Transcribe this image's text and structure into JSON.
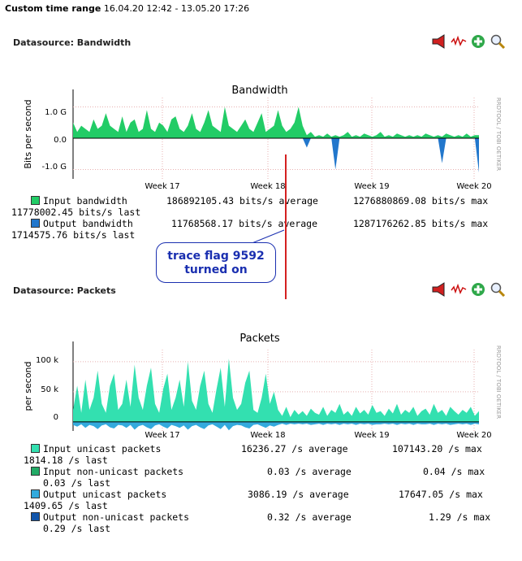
{
  "header": {
    "label": "Custom time range",
    "range": "16.04.20 12:42 - 13.05.20 17:26"
  },
  "panels": [
    {
      "datasource_label": "Datasource: Bandwidth",
      "title": "Bandwidth",
      "ylabel": "Bits per second",
      "yticks": [
        "1.0 G",
        "0.0",
        "-1.0 G"
      ],
      "xticks": [
        "Week 17",
        "Week 18",
        "Week 19",
        "Week 20"
      ],
      "side_label": "RRDTOOL / TOBI OETIKER",
      "legend": [
        {
          "name": "Input bandwidth",
          "color": "#22cc66",
          "avg": "186892105.43 bits/s average",
          "max": "1276880869.08 bits/s max",
          "last": "11778002.45 bits/s last"
        },
        {
          "name": "Output bandwidth",
          "color": "#2277cc",
          "avg": "11768568.17 bits/s average",
          "max": "1287176262.85 bits/s max",
          "last": "1714575.76 bits/s last"
        }
      ]
    },
    {
      "datasource_label": "Datasource: Packets",
      "title": "Packets",
      "ylabel": "per second",
      "yticks": [
        "100 k",
        "50 k",
        "0"
      ],
      "xticks": [
        "Week 17",
        "Week 18",
        "Week 19",
        "Week 20"
      ],
      "side_label": "RRDTOOL / TOBI OETIKER",
      "legend": [
        {
          "name": "Input unicast packets",
          "color": "#33e0b0",
          "avg": "16236.27 /s average",
          "max": "107143.20 /s max",
          "last": "1814.18 /s last"
        },
        {
          "name": "Input non-unicast packets",
          "color": "#22aa66",
          "avg": "0.03 /s average",
          "max": "0.04 /s max",
          "last": "0.03 /s last"
        },
        {
          "name": "Output unicast packets",
          "color": "#33aadd",
          "avg": "3086.19 /s average",
          "max": "17647.05 /s max",
          "last": "1409.65 /s last"
        },
        {
          "name": "Output non-unicast packets",
          "color": "#1155aa",
          "avg": "0.32 /s average",
          "max": "1.29 /s max",
          "last": "0.29 /s last"
        }
      ]
    }
  ],
  "annotation": {
    "line1": "trace flag 9592",
    "line2": "turned on",
    "color": "#1a2fb0"
  },
  "icons": [
    "megaphone-icon",
    "sparkline-icon",
    "add-icon",
    "zoom-icon"
  ],
  "chart_data": [
    {
      "type": "area",
      "title": "Bandwidth",
      "ylabel": "Bits per second",
      "xticks": [
        "Week 17",
        "Week 18",
        "Week 19",
        "Week 20"
      ],
      "yticks": [
        "1.0 G",
        "0.0",
        "-1.0 G"
      ],
      "ylim": [
        -1.3,
        1.3
      ],
      "series": [
        {
          "name": "Input bandwidth",
          "color": "#22cc66",
          "values": [
            0.5,
            0.2,
            0.4,
            0.3,
            0.2,
            0.6,
            0.3,
            0.4,
            0.8,
            0.4,
            0.3,
            0.2,
            0.7,
            0.2,
            0.5,
            0.6,
            0.2,
            0.3,
            0.9,
            0.3,
            0.2,
            0.5,
            0.4,
            0.2,
            0.6,
            0.7,
            0.3,
            0.2,
            0.4,
            0.8,
            0.3,
            0.2,
            0.5,
            0.9,
            0.4,
            0.3,
            0.2,
            1.0,
            0.4,
            0.3,
            0.2,
            0.4,
            0.6,
            0.3,
            0.2,
            0.5,
            0.8,
            0.2,
            0.3,
            0.4,
            0.9,
            0.4,
            0.2,
            0.3,
            0.5,
            1.0,
            0.4,
            0.1,
            0.2,
            0.05,
            0.1,
            0.05,
            0.15,
            0.05,
            0.1,
            0.05,
            0.1,
            0.2,
            0.05,
            0.1,
            0.05,
            0.15,
            0.1,
            0.05,
            0.1,
            0.2,
            0.05,
            0.1,
            0.05,
            0.15,
            0.1,
            0.05,
            0.1,
            0.05,
            0.1,
            0.05,
            0.15,
            0.1,
            0.05,
            0.1,
            0.05,
            0.15,
            0.1,
            0.05,
            0.1,
            0.05,
            0.15,
            0.05,
            0.1,
            0.1
          ]
        },
        {
          "name": "Output bandwidth",
          "color": "#2277cc",
          "values": [
            0,
            0,
            0,
            0,
            0,
            0,
            0,
            0,
            0,
            0,
            0,
            0,
            0,
            0,
            0,
            0,
            0,
            0,
            0,
            0,
            0,
            0,
            0,
            0,
            0,
            0,
            0,
            0,
            0,
            0,
            0,
            0,
            0,
            0,
            0,
            0,
            0,
            0,
            0,
            0,
            0,
            0,
            0,
            0,
            0,
            0,
            0,
            0,
            0,
            0,
            0,
            0,
            0,
            0,
            0,
            0,
            0,
            -0.3,
            0,
            0,
            0,
            0,
            0,
            0,
            -1.0,
            0,
            0,
            0,
            0,
            0,
            0,
            0,
            0,
            0,
            0,
            0,
            0,
            0,
            0,
            0,
            0,
            0,
            0,
            0,
            0,
            0,
            0,
            0,
            0,
            0,
            -0.8,
            0,
            0,
            0,
            0,
            0,
            0,
            0,
            0,
            -1.1
          ]
        }
      ]
    },
    {
      "type": "area",
      "title": "Packets",
      "ylabel": "per second",
      "xticks": [
        "Week 17",
        "Week 18",
        "Week 19",
        "Week 20"
      ],
      "yticks": [
        "100 k",
        "50 k",
        "0"
      ],
      "ylim": [
        -15,
        120
      ],
      "series": [
        {
          "name": "Input unicast packets",
          "color": "#33e0b0",
          "values": [
            20,
            60,
            15,
            70,
            20,
            40,
            85,
            30,
            15,
            60,
            80,
            20,
            30,
            70,
            25,
            95,
            40,
            20,
            60,
            90,
            30,
            15,
            55,
            80,
            20,
            40,
            70,
            25,
            100,
            35,
            20,
            60,
            85,
            30,
            15,
            55,
            90,
            25,
            105,
            40,
            20,
            30,
            65,
            85,
            20,
            15,
            40,
            80,
            30,
            50,
            20,
            10,
            25,
            8,
            20,
            12,
            18,
            10,
            22,
            15,
            12,
            25,
            10,
            20,
            15,
            30,
            12,
            18,
            10,
            25,
            14,
            20,
            12,
            28,
            15,
            18,
            10,
            22,
            14,
            30,
            12,
            20,
            15,
            25,
            10,
            18,
            22,
            12,
            30,
            15,
            20,
            10,
            25,
            18,
            12,
            20,
            15,
            25,
            10,
            18
          ]
        },
        {
          "name": "Output unicast packets",
          "color": "#33aadd",
          "values": [
            -5,
            -8,
            -4,
            -10,
            -5,
            -7,
            -12,
            -6,
            -4,
            -9,
            -11,
            -5,
            -6,
            -10,
            -5,
            -13,
            -7,
            -5,
            -9,
            -12,
            -6,
            -4,
            -8,
            -11,
            -5,
            -7,
            -10,
            -6,
            -13,
            -7,
            -5,
            -9,
            -12,
            -6,
            -4,
            -8,
            -12,
            -5,
            -14,
            -7,
            -5,
            -6,
            -9,
            -11,
            -5,
            -4,
            -7,
            -10,
            -6,
            -8,
            -5,
            -3,
            -5,
            -3,
            -4,
            -3,
            -4,
            -3,
            -5,
            -4,
            -3,
            -5,
            -3,
            -4,
            -3,
            -5,
            -3,
            -4,
            -3,
            -5,
            -3,
            -4,
            -3,
            -5,
            -4,
            -4,
            -3,
            -4,
            -3,
            -5,
            -3,
            -4,
            -3,
            -5,
            -3,
            -4,
            -4,
            -3,
            -5,
            -3,
            -4,
            -3,
            -5,
            -4,
            -3,
            -4,
            -3,
            -5,
            -3,
            -4
          ]
        }
      ]
    }
  ]
}
